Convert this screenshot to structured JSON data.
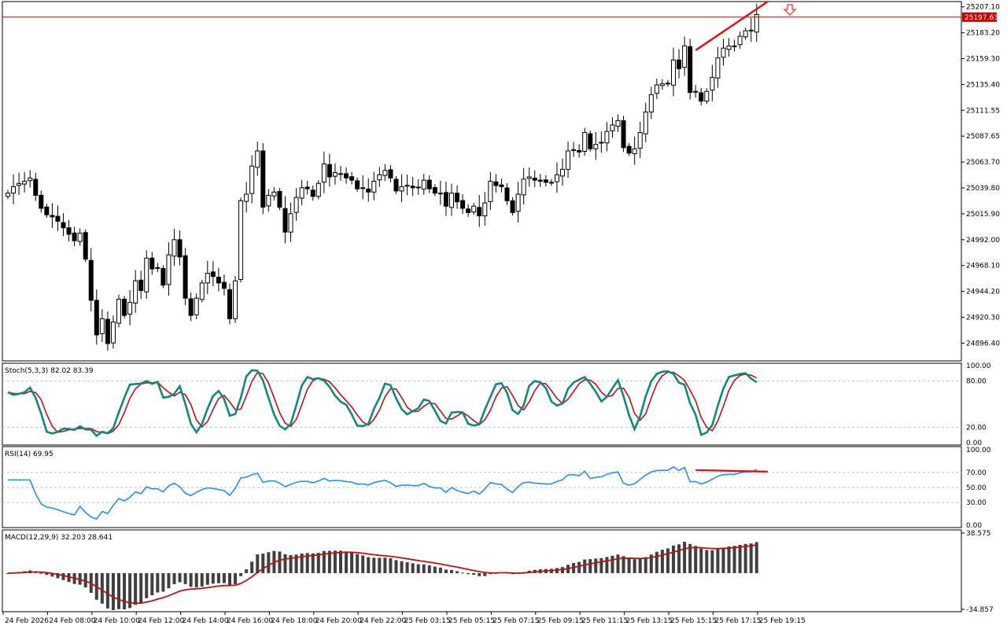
{
  "chart_data": {
    "type": "candlestick",
    "main": {
      "ylim": [
        24880,
        25212
      ],
      "price_ticks": [
        "25207.10",
        "25183.20",
        "25159.30",
        "25135.40",
        "25111.55",
        "25087.65",
        "25063.70",
        "25039.80",
        "25015.90",
        "24992.00",
        "24968.10",
        "24944.20",
        "24920.30",
        "24896.40"
      ],
      "current_price": "25197.63",
      "current_price_value": 25197.63,
      "colors": {
        "up_body": "#ffffff",
        "down_body": "#000000",
        "wick": "#000000",
        "price_line": "#cc0000",
        "trendline": "#e01010",
        "arrow": "#ff3333"
      },
      "trendline": [
        {
          "i": 124,
          "price": 25167
        },
        {
          "i": 137,
          "price": 25212
        }
      ],
      "sell_arrow_index": 141,
      "closes": [
        25035,
        25041,
        25044,
        25046,
        25049,
        25033,
        25021,
        25015,
        25013,
        25009,
        25003,
        24997,
        24991,
        24998,
        24974,
        24936,
        24904,
        24919,
        24896,
        24916,
        24937,
        24922,
        24934,
        24954,
        24945,
        24975,
        24965,
        24966,
        24950,
        24978,
        24992,
        24976,
        24938,
        24922,
        24938,
        24952,
        24961,
        24958,
        24952,
        24947,
        24919,
        24954,
        25028,
        25034,
        25060,
        25074,
        25022,
        25033,
        25036,
        25022,
        24999,
        25016,
        25031,
        25040,
        25039,
        25032,
        25044,
        25062,
        25050,
        25054,
        25053,
        25049,
        25047,
        25039,
        25040,
        25036,
        25046,
        25052,
        25056,
        25049,
        25037,
        25041,
        25042,
        25040,
        25040,
        25047,
        25039,
        25035,
        25035,
        25023,
        25035,
        25027,
        25021,
        25017,
        25023,
        25014,
        25026,
        25046,
        25042,
        25041,
        25028,
        25017,
        25034,
        25048,
        25050,
        25047,
        25046,
        25045,
        25045,
        25052,
        25057,
        25074,
        25075,
        25073,
        25091,
        25076,
        25080,
        25082,
        25092,
        25098,
        25102,
        25077,
        25072,
        25076,
        25091,
        25110,
        25126,
        25135,
        25136,
        25136,
        25158,
        25150,
        25171,
        25128,
        25129,
        25120,
        25129,
        25142,
        25160,
        25169,
        25171,
        25171,
        25180,
        25185,
        25185,
        25200
      ],
      "hours": [
        {
          "label": "24 Feb 2026",
          "i": 0
        },
        {
          "label": "24 Feb 08:00",
          "i": 8
        },
        {
          "label": "24 Feb 10:00",
          "i": 16
        },
        {
          "label": "24 Feb 12:00",
          "i": 24
        },
        {
          "label": "24 Feb 14:00",
          "i": 32
        },
        {
          "label": "24 Feb 16:00",
          "i": 40
        },
        {
          "label": "24 Feb 18:00",
          "i": 48
        },
        {
          "label": "24 Feb 20:00",
          "i": 56
        },
        {
          "label": "24 Feb 22:00",
          "i": 64
        },
        {
          "label": "25 Feb 03:15",
          "i": 72
        },
        {
          "label": "25 Feb 05:15",
          "i": 80
        },
        {
          "label": "25 Feb 07:15",
          "i": 88
        },
        {
          "label": "25 Feb 09:15",
          "i": 96
        },
        {
          "label": "25 Feb 11:15",
          "i": 104
        },
        {
          "label": "25 Feb 13:15",
          "i": 112
        },
        {
          "label": "25 Feb 15:15",
          "i": 120
        },
        {
          "label": "25 Feb 17:15",
          "i": 128
        },
        {
          "label": "25 Feb 19:15",
          "i": 136
        }
      ]
    },
    "stochastic": {
      "label": "Stoch(5,3,3) 82.02 83.39",
      "ylim": [
        0,
        100
      ],
      "ticks": [
        "100.00",
        "80.00",
        "20.00",
        "0.00"
      ],
      "levels": [
        80,
        20
      ],
      "colors": {
        "main": "#0f8a7a",
        "signal": "#c01010"
      }
    },
    "rsi": {
      "label": "RSI(14) 69.95",
      "ylim": [
        0,
        100
      ],
      "ticks": [
        "100.00",
        "70.00",
        "50.00",
        "30.00",
        "0.00"
      ],
      "levels": [
        70,
        50,
        30
      ],
      "colors": {
        "line": "#1e90ff",
        "divergence": "#e01010"
      }
    },
    "macd": {
      "label": "MACD(12,29,9) 32.203 28.641",
      "ticks": [
        "38.575",
        "-34.857"
      ],
      "ylim": [
        -34.857,
        38.575
      ],
      "colors": {
        "hist": "#404040",
        "signal": "#c01010"
      }
    }
  }
}
